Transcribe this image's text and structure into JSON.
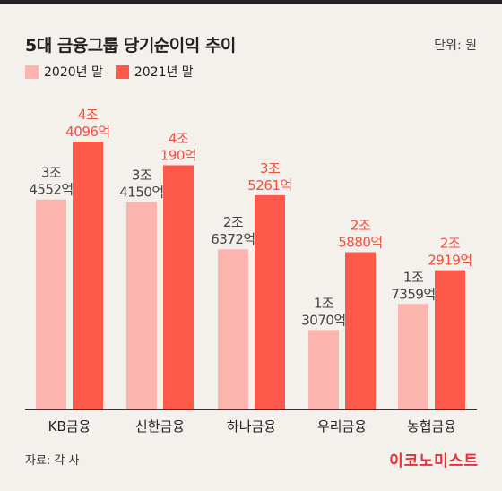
{
  "header": {
    "title": "5대 금융그룹 당기순이익 추이",
    "unit": "단위: 원"
  },
  "legend": {
    "items": [
      {
        "label": "2020년 말",
        "color": "#fbb5ae"
      },
      {
        "label": "2021년 말",
        "color": "#fd5a4c"
      }
    ]
  },
  "chart_data": {
    "type": "bar",
    "title": "5대 금융그룹 당기순이익 추이",
    "xlabel": "",
    "ylabel": "",
    "unit": "원",
    "categories": [
      "KB금융",
      "신한금융",
      "하나금융",
      "우리금융",
      "농협금융"
    ],
    "series": [
      {
        "name": "2020년 말",
        "color": "#fbb5ae",
        "values": [
          34552,
          34150,
          26372,
          13070,
          17359
        ],
        "labels": [
          [
            "3조",
            "4552억"
          ],
          [
            "3조",
            "4150억"
          ],
          [
            "2조",
            "6372억"
          ],
          [
            "1조",
            "3070억"
          ],
          [
            "1조",
            "7359억"
          ]
        ]
      },
      {
        "name": "2021년 말",
        "color": "#fd5a4c",
        "values": [
          44096,
          40190,
          35261,
          25880,
          22919
        ],
        "labels": [
          [
            "4조",
            "4096억"
          ],
          [
            "4조",
            "190억"
          ],
          [
            "3조",
            "5261억"
          ],
          [
            "2조",
            "5880억"
          ],
          [
            "2조",
            "2919억"
          ]
        ]
      }
    ],
    "value_unit": "억원",
    "legend_position": "top-left",
    "grid": false
  },
  "footer": {
    "source": "자료: 각 사",
    "brand": "이코노미스트"
  }
}
